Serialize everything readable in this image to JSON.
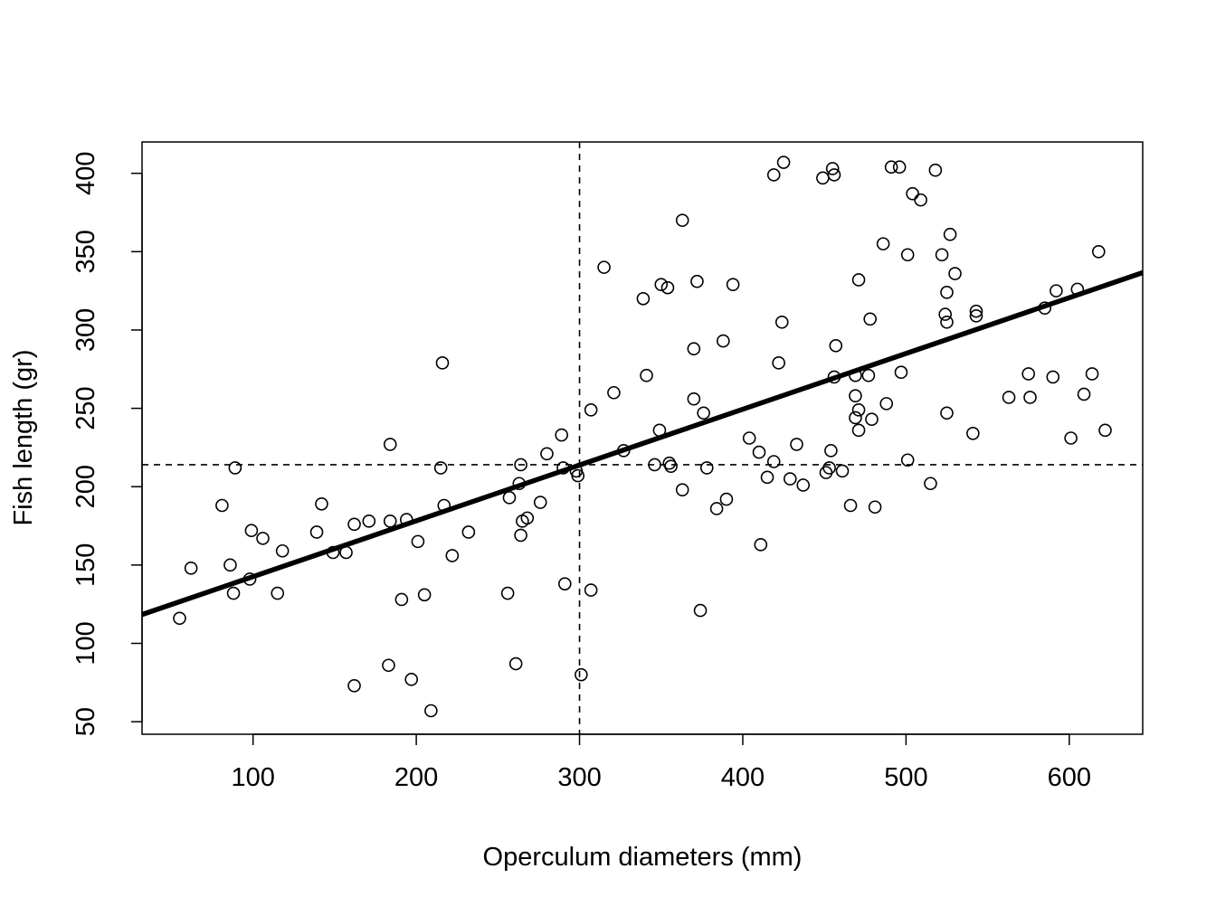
{
  "chart_data": {
    "type": "scatter",
    "title": "",
    "xlabel": "Operculum diameters (mm)",
    "ylabel": "Fish length (gr)",
    "xlim": [
      32,
      645
    ],
    "ylim": [
      42,
      420
    ],
    "x_ticks": [
      100,
      200,
      300,
      400,
      500,
      600
    ],
    "y_ticks": [
      50,
      100,
      150,
      200,
      250,
      300,
      350,
      400
    ],
    "x_tick_labels": [
      "100",
      "200",
      "300",
      "400",
      "500",
      "600"
    ],
    "y_tick_labels": [
      "50",
      "100",
      "150",
      "200",
      "250",
      "300",
      "350",
      "400"
    ],
    "grid": false,
    "legend": "none",
    "marker": "open-circle",
    "mean_lines": {
      "x": 300,
      "y": 214,
      "style": "dashed"
    },
    "regression_line": {
      "intercept": 107,
      "slope": 0.356,
      "style": "solid-thick"
    },
    "points": [
      [
        55,
        116
      ],
      [
        62,
        148
      ],
      [
        81,
        188
      ],
      [
        86,
        150
      ],
      [
        88,
        132
      ],
      [
        89,
        212
      ],
      [
        98,
        141
      ],
      [
        99,
        172
      ],
      [
        106,
        167
      ],
      [
        115,
        132
      ],
      [
        118,
        159
      ],
      [
        139,
        171
      ],
      [
        142,
        189
      ],
      [
        149,
        158
      ],
      [
        157,
        158
      ],
      [
        162,
        73
      ],
      [
        162,
        176
      ],
      [
        171,
        178
      ],
      [
        183,
        86
      ],
      [
        184,
        178
      ],
      [
        184,
        227
      ],
      [
        191,
        128
      ],
      [
        194,
        179
      ],
      [
        197,
        77
      ],
      [
        201,
        165
      ],
      [
        205,
        131
      ],
      [
        209,
        57
      ],
      [
        215,
        212
      ],
      [
        216,
        279
      ],
      [
        217,
        188
      ],
      [
        222,
        156
      ],
      [
        232,
        171
      ],
      [
        256,
        132
      ],
      [
        257,
        193
      ],
      [
        261,
        87
      ],
      [
        263,
        202
      ],
      [
        264,
        169
      ],
      [
        264,
        214
      ],
      [
        265,
        178
      ],
      [
        268,
        180
      ],
      [
        276,
        190
      ],
      [
        280,
        221
      ],
      [
        289,
        233
      ],
      [
        290,
        212
      ],
      [
        291,
        138
      ],
      [
        298,
        210
      ],
      [
        299,
        207
      ],
      [
        301,
        80
      ],
      [
        307,
        134
      ],
      [
        307,
        249
      ],
      [
        315,
        340
      ],
      [
        321,
        260
      ],
      [
        327,
        223
      ],
      [
        339,
        320
      ],
      [
        341,
        271
      ],
      [
        346,
        214
      ],
      [
        349,
        236
      ],
      [
        350,
        329
      ],
      [
        354,
        327
      ],
      [
        355,
        215
      ],
      [
        356,
        213
      ],
      [
        363,
        198
      ],
      [
        363,
        370
      ],
      [
        370,
        256
      ],
      [
        370,
        288
      ],
      [
        372,
        331
      ],
      [
        374,
        121
      ],
      [
        376,
        247
      ],
      [
        378,
        212
      ],
      [
        384,
        186
      ],
      [
        388,
        293
      ],
      [
        390,
        192
      ],
      [
        394,
        329
      ],
      [
        404,
        231
      ],
      [
        410,
        222
      ],
      [
        411,
        163
      ],
      [
        415,
        206
      ],
      [
        419,
        216
      ],
      [
        419,
        399
      ],
      [
        422,
        279
      ],
      [
        424,
        305
      ],
      [
        425,
        407
      ],
      [
        429,
        205
      ],
      [
        433,
        227
      ],
      [
        437,
        201
      ],
      [
        449,
        397
      ],
      [
        451,
        209
      ],
      [
        453,
        212
      ],
      [
        454,
        223
      ],
      [
        455,
        403
      ],
      [
        456,
        270
      ],
      [
        456,
        399
      ],
      [
        457,
        290
      ],
      [
        461,
        210
      ],
      [
        466,
        188
      ],
      [
        469,
        258
      ],
      [
        469,
        271
      ],
      [
        469,
        244
      ],
      [
        471,
        236
      ],
      [
        471,
        249
      ],
      [
        471,
        332
      ],
      [
        477,
        271
      ],
      [
        478,
        307
      ],
      [
        479,
        243
      ],
      [
        481,
        187
      ],
      [
        486,
        355
      ],
      [
        488,
        253
      ],
      [
        491,
        404
      ],
      [
        496,
        404
      ],
      [
        497,
        273
      ],
      [
        501,
        217
      ],
      [
        501,
        348
      ],
      [
        504,
        387
      ],
      [
        509,
        383
      ],
      [
        515,
        202
      ],
      [
        518,
        402
      ],
      [
        522,
        348
      ],
      [
        524,
        310
      ],
      [
        525,
        324
      ],
      [
        525,
        247
      ],
      [
        525,
        305
      ],
      [
        527,
        361
      ],
      [
        530,
        336
      ],
      [
        541,
        234
      ],
      [
        543,
        309
      ],
      [
        543,
        312
      ],
      [
        563,
        257
      ],
      [
        575,
        272
      ],
      [
        576,
        257
      ],
      [
        585,
        314
      ],
      [
        590,
        270
      ],
      [
        592,
        325
      ],
      [
        601,
        231
      ],
      [
        605,
        326
      ],
      [
        609,
        259
      ],
      [
        614,
        272
      ],
      [
        618,
        350
      ],
      [
        622,
        236
      ]
    ]
  }
}
